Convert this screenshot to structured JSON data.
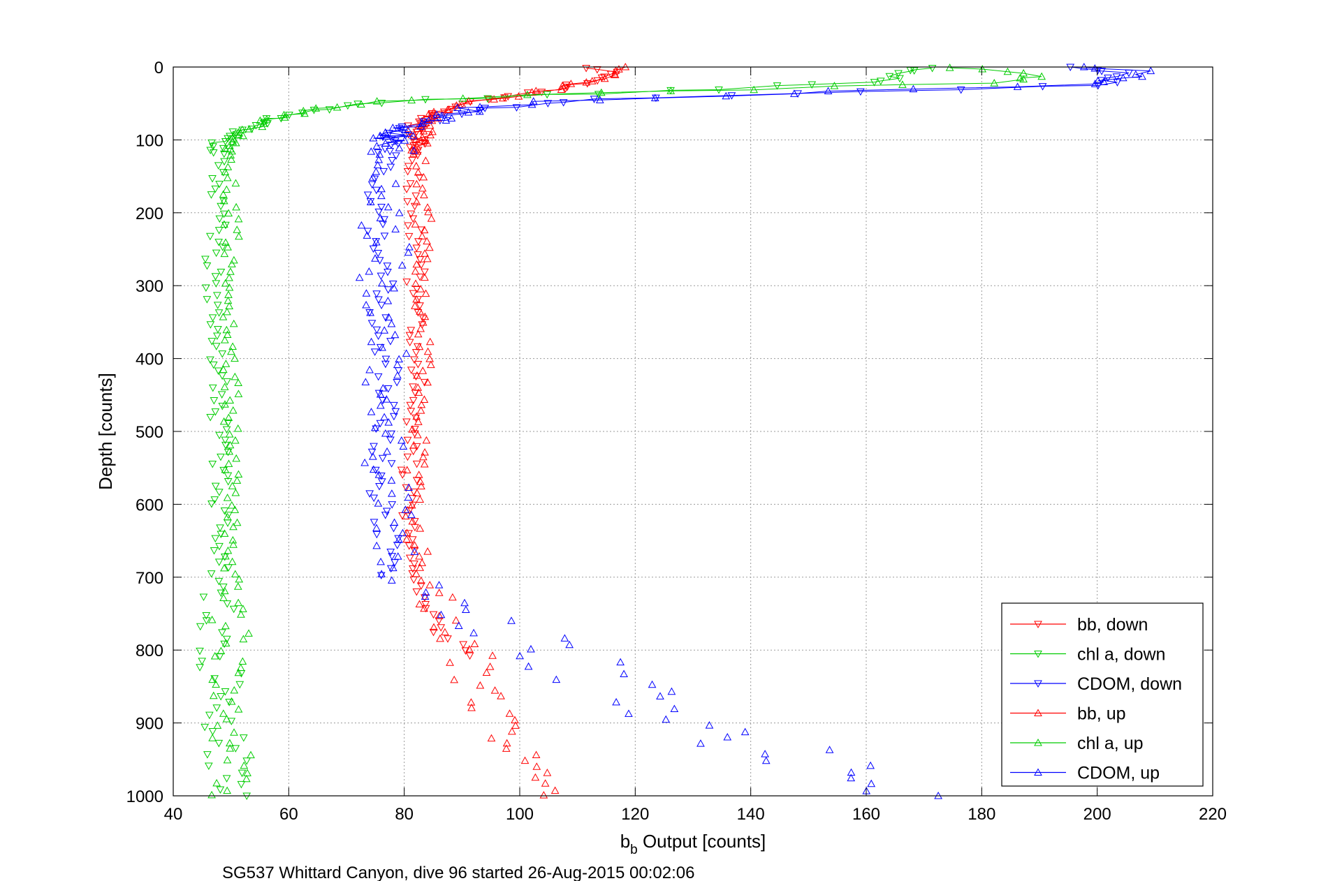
{
  "caption": "SG537 Whittard Canyon, dive 96 started 26-Aug-2015 00:02:06",
  "chart_data": {
    "type": "scatter",
    "xlabel_main": "b",
    "xlabel_sub": "b",
    "xlabel_rest": " Output [counts]",
    "ylabel": "Depth [counts]",
    "xlim": [
      40,
      220
    ],
    "ylim": [
      0,
      1000
    ],
    "y_reversed": true,
    "grid": true,
    "xticks": [
      40,
      60,
      80,
      100,
      120,
      140,
      160,
      180,
      200,
      220
    ],
    "yticks": [
      0,
      100,
      200,
      300,
      400,
      500,
      600,
      700,
      800,
      900,
      1000
    ],
    "legend_position": "bottom-right",
    "series": [
      {
        "name": "bb, down",
        "color": "#ff0000",
        "marker": "triangle-down",
        "profile": [
          [
            113,
            0
          ],
          [
            116,
            8
          ],
          [
            112,
            18
          ],
          [
            108,
            28
          ],
          [
            100,
            38
          ],
          [
            92,
            48
          ],
          [
            86,
            58
          ],
          [
            83,
            70
          ],
          [
            82,
            85
          ],
          [
            82,
            100
          ],
          [
            82,
            150
          ],
          [
            82,
            200
          ],
          [
            82,
            250
          ],
          [
            82,
            300
          ],
          [
            82,
            350
          ],
          [
            82,
            400
          ],
          [
            82,
            450
          ],
          [
            82,
            500
          ],
          [
            81,
            550
          ],
          [
            81,
            600
          ],
          [
            81,
            650
          ],
          [
            82,
            700
          ],
          [
            85,
            740
          ],
          [
            89,
            775
          ],
          [
            91,
            810
          ]
        ],
        "noise": 1.6
      },
      {
        "name": "chl a, down",
        "color": "#00cc00",
        "marker": "triangle-down",
        "profile": [
          [
            170,
            0
          ],
          [
            166,
            10
          ],
          [
            163,
            20
          ],
          [
            130,
            32
          ],
          [
            100,
            40
          ],
          [
            75,
            48
          ],
          [
            63,
            60
          ],
          [
            56,
            75
          ],
          [
            51,
            88
          ],
          [
            48,
            100
          ],
          [
            48,
            150
          ],
          [
            48,
            200
          ],
          [
            47,
            250
          ],
          [
            47,
            300
          ],
          [
            47,
            350
          ],
          [
            48,
            400
          ],
          [
            48,
            450
          ],
          [
            48,
            500
          ],
          [
            48,
            550
          ],
          [
            48,
            600
          ],
          [
            48,
            650
          ],
          [
            48,
            700
          ],
          [
            48,
            750
          ],
          [
            48,
            800
          ],
          [
            49,
            850
          ],
          [
            49,
            900
          ],
          [
            49,
            950
          ],
          [
            49,
            1000
          ]
        ],
        "noise": 1.6
      },
      {
        "name": "CDOM, down",
        "color": "#0000ff",
        "marker": "triangle-down",
        "profile": [
          [
            195,
            0
          ],
          [
            205,
            10
          ],
          [
            200,
            25
          ],
          [
            150,
            35
          ],
          [
            115,
            45
          ],
          [
            97,
            55
          ],
          [
            86,
            68
          ],
          [
            80,
            85
          ],
          [
            77,
            100
          ],
          [
            76,
            150
          ],
          [
            75,
            200
          ],
          [
            76,
            250
          ],
          [
            76,
            300
          ],
          [
            76,
            350
          ],
          [
            77,
            400
          ],
          [
            77,
            450
          ],
          [
            77,
            500
          ],
          [
            76,
            550
          ],
          [
            76,
            600
          ],
          [
            77,
            650
          ],
          [
            78,
            700
          ]
        ],
        "noise": 2.2
      },
      {
        "name": "bb, up",
        "color": "#ff0000",
        "marker": "triangle-up",
        "profile": [
          [
            117,
            0
          ],
          [
            115,
            12
          ],
          [
            111,
            22
          ],
          [
            104,
            32
          ],
          [
            96,
            42
          ],
          [
            90,
            52
          ],
          [
            86,
            65
          ],
          [
            84,
            80
          ],
          [
            83,
            100
          ],
          [
            83,
            150
          ],
          [
            83,
            200
          ],
          [
            83,
            250
          ],
          [
            83,
            300
          ],
          [
            83,
            350
          ],
          [
            83,
            400
          ],
          [
            83,
            450
          ],
          [
            83,
            500
          ],
          [
            82,
            550
          ],
          [
            82,
            600
          ],
          [
            82,
            650
          ],
          [
            83,
            700
          ],
          [
            85,
            730
          ],
          [
            88,
            760
          ],
          [
            92,
            800
          ],
          [
            93,
            840
          ],
          [
            95,
            870
          ],
          [
            97,
            900
          ],
          [
            100,
            930
          ],
          [
            101,
            960
          ],
          [
            104,
            985
          ],
          [
            105,
            1000
          ]
        ],
        "noise": 1.8
      },
      {
        "name": "chl a, up",
        "color": "#00cc00",
        "marker": "triangle-up",
        "profile": [
          [
            175,
            0
          ],
          [
            190,
            10
          ],
          [
            186,
            20
          ],
          [
            140,
            30
          ],
          [
            105,
            38
          ],
          [
            80,
            45
          ],
          [
            66,
            55
          ],
          [
            58,
            70
          ],
          [
            53,
            85
          ],
          [
            50,
            100
          ],
          [
            50,
            150
          ],
          [
            50,
            200
          ],
          [
            50,
            250
          ],
          [
            50,
            300
          ],
          [
            50,
            350
          ],
          [
            50,
            400
          ],
          [
            50,
            450
          ],
          [
            50,
            500
          ],
          [
            50,
            550
          ],
          [
            50,
            600
          ],
          [
            50,
            650
          ],
          [
            50,
            700
          ],
          [
            50,
            750
          ],
          [
            50,
            800
          ],
          [
            50,
            850
          ],
          [
            50,
            900
          ],
          [
            50,
            950
          ],
          [
            50,
            1000
          ]
        ],
        "noise": 1.4
      },
      {
        "name": "CDOM, up",
        "color": "#0000ff",
        "marker": "triangle-up",
        "profile": [
          [
            200,
            0
          ],
          [
            210,
            10
          ],
          [
            198,
            25
          ],
          [
            160,
            32
          ],
          [
            120,
            42
          ],
          [
            100,
            50
          ],
          [
            88,
            62
          ],
          [
            83,
            75
          ],
          [
            79,
            90
          ],
          [
            78,
            100
          ],
          [
            77,
            150
          ],
          [
            76,
            200
          ],
          [
            77,
            250
          ],
          [
            76,
            300
          ],
          [
            77,
            350
          ],
          [
            77,
            400
          ],
          [
            77,
            450
          ],
          [
            77,
            500
          ],
          [
            77,
            550
          ],
          [
            77,
            600
          ],
          [
            78,
            650
          ],
          [
            80,
            700
          ],
          [
            90,
            740
          ],
          [
            100,
            770
          ],
          [
            108,
            800
          ],
          [
            112,
            830
          ],
          [
            118,
            860
          ],
          [
            125,
            880
          ],
          [
            132,
            900
          ],
          [
            140,
            925
          ],
          [
            150,
            950
          ],
          [
            160,
            975
          ],
          [
            168,
            1000
          ]
        ],
        "noise": 4.0
      }
    ]
  }
}
